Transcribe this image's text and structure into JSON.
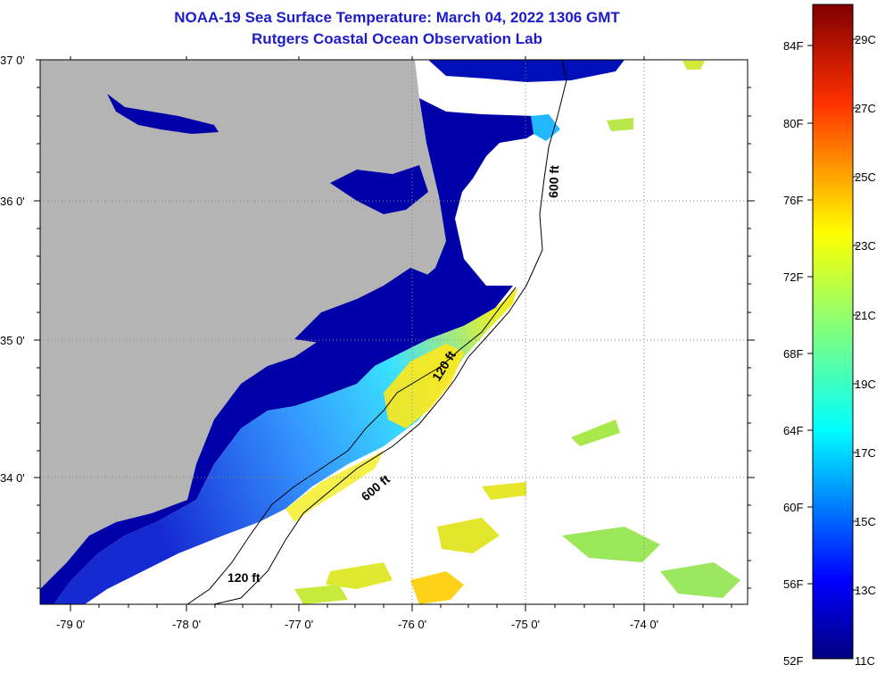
{
  "title": {
    "line1": "NOAA-19 Sea Surface Temperature:  March 04, 2022 1306 GMT",
    "line2": "Rutgers Coastal Ocean Observation Lab"
  },
  "axes": {
    "lat_labels": [
      "37 0'",
      "36 0'",
      "35 0'",
      "34 0'"
    ],
    "lon_labels": [
      "-79 0'",
      "-78 0'",
      "-77 0'",
      "-76 0'",
      "-75 0'",
      "-74 0'"
    ]
  },
  "contours": {
    "label_600_top": "600 ft",
    "label_120_mid": "120 ft",
    "label_600_mid": "600 ft",
    "label_120_bottom": "120 ft"
  },
  "colorbar": {
    "fahrenheit_labels": [
      "84F",
      "80F",
      "76F",
      "72F",
      "68F",
      "64F",
      "60F",
      "56F",
      "52F"
    ],
    "celsius_labels": [
      "29C",
      "27C",
      "25C",
      "23C",
      "21C",
      "19C",
      "17C",
      "15C",
      "13C",
      "11C"
    ]
  },
  "colors": {
    "land": "#b4b4b4",
    "cold": "#0000a0",
    "warm": "#ffd700",
    "title": "#1c1ccc"
  }
}
